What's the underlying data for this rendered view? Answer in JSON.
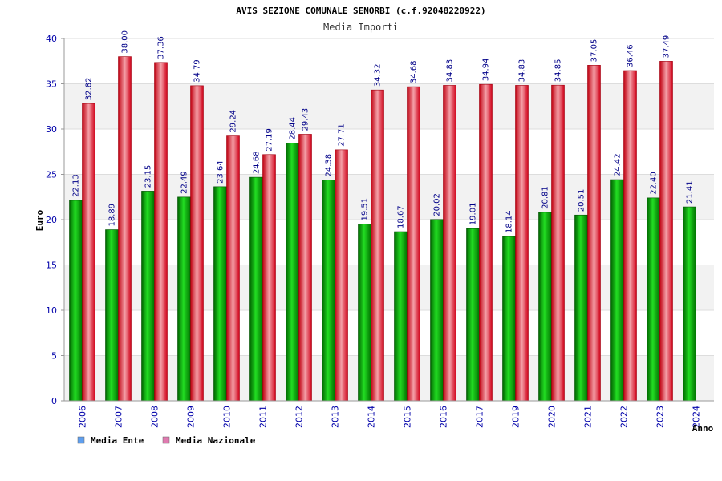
{
  "chart_data": {
    "type": "bar",
    "title": "AVIS SEZIONE COMUNALE SENORBI (c.f.92048220922)",
    "subtitle": "Media Importi",
    "xlabel": "Anno",
    "ylabel": "Euro",
    "ylim": [
      0,
      40
    ],
    "yticks": [
      0,
      5,
      10,
      15,
      20,
      25,
      30,
      35,
      40
    ],
    "grid": "horizontal bands",
    "legend_position": "bottom-left",
    "categories": [
      "2006",
      "2007",
      "2008",
      "2009",
      "2010",
      "2011",
      "2012",
      "2013",
      "2014",
      "2015",
      "2016",
      "2017",
      "2019",
      "2020",
      "2021",
      "2022",
      "2023",
      "2024"
    ],
    "series": [
      {
        "name": "Media Ente",
        "color": "#00b000",
        "legend_color": "#5f9fef",
        "values": [
          22.13,
          18.89,
          23.15,
          22.49,
          23.64,
          24.68,
          28.44,
          24.38,
          19.51,
          18.67,
          20.02,
          19.01,
          18.14,
          20.81,
          20.51,
          24.42,
          22.4,
          21.41
        ],
        "labels": [
          "22.13",
          "18.89",
          "23.15",
          "22.49",
          "23.64",
          "24.68",
          "28.44",
          "24.38",
          "19.51",
          "18.67",
          "20.02",
          "19.01",
          "18.14",
          "20.81",
          "20.51",
          "24.42",
          "22.40",
          "21.41"
        ]
      },
      {
        "name": "Media Nazionale",
        "color": "#e01020",
        "legend_color": "#e07ab0",
        "values": [
          32.82,
          38.0,
          37.36,
          34.79,
          29.24,
          27.19,
          29.43,
          27.71,
          34.32,
          34.68,
          34.83,
          34.94,
          34.83,
          34.85,
          37.05,
          36.46,
          37.49,
          null
        ],
        "labels": [
          "32.82",
          "38.00",
          "37.36",
          "34.79",
          "29.24",
          "27.19",
          "29.43",
          "27.71",
          "34.32",
          "34.68",
          "34.83",
          "34.94",
          "34.83",
          "34.85",
          "37.05",
          "36.46",
          "37.49",
          ""
        ]
      }
    ]
  }
}
